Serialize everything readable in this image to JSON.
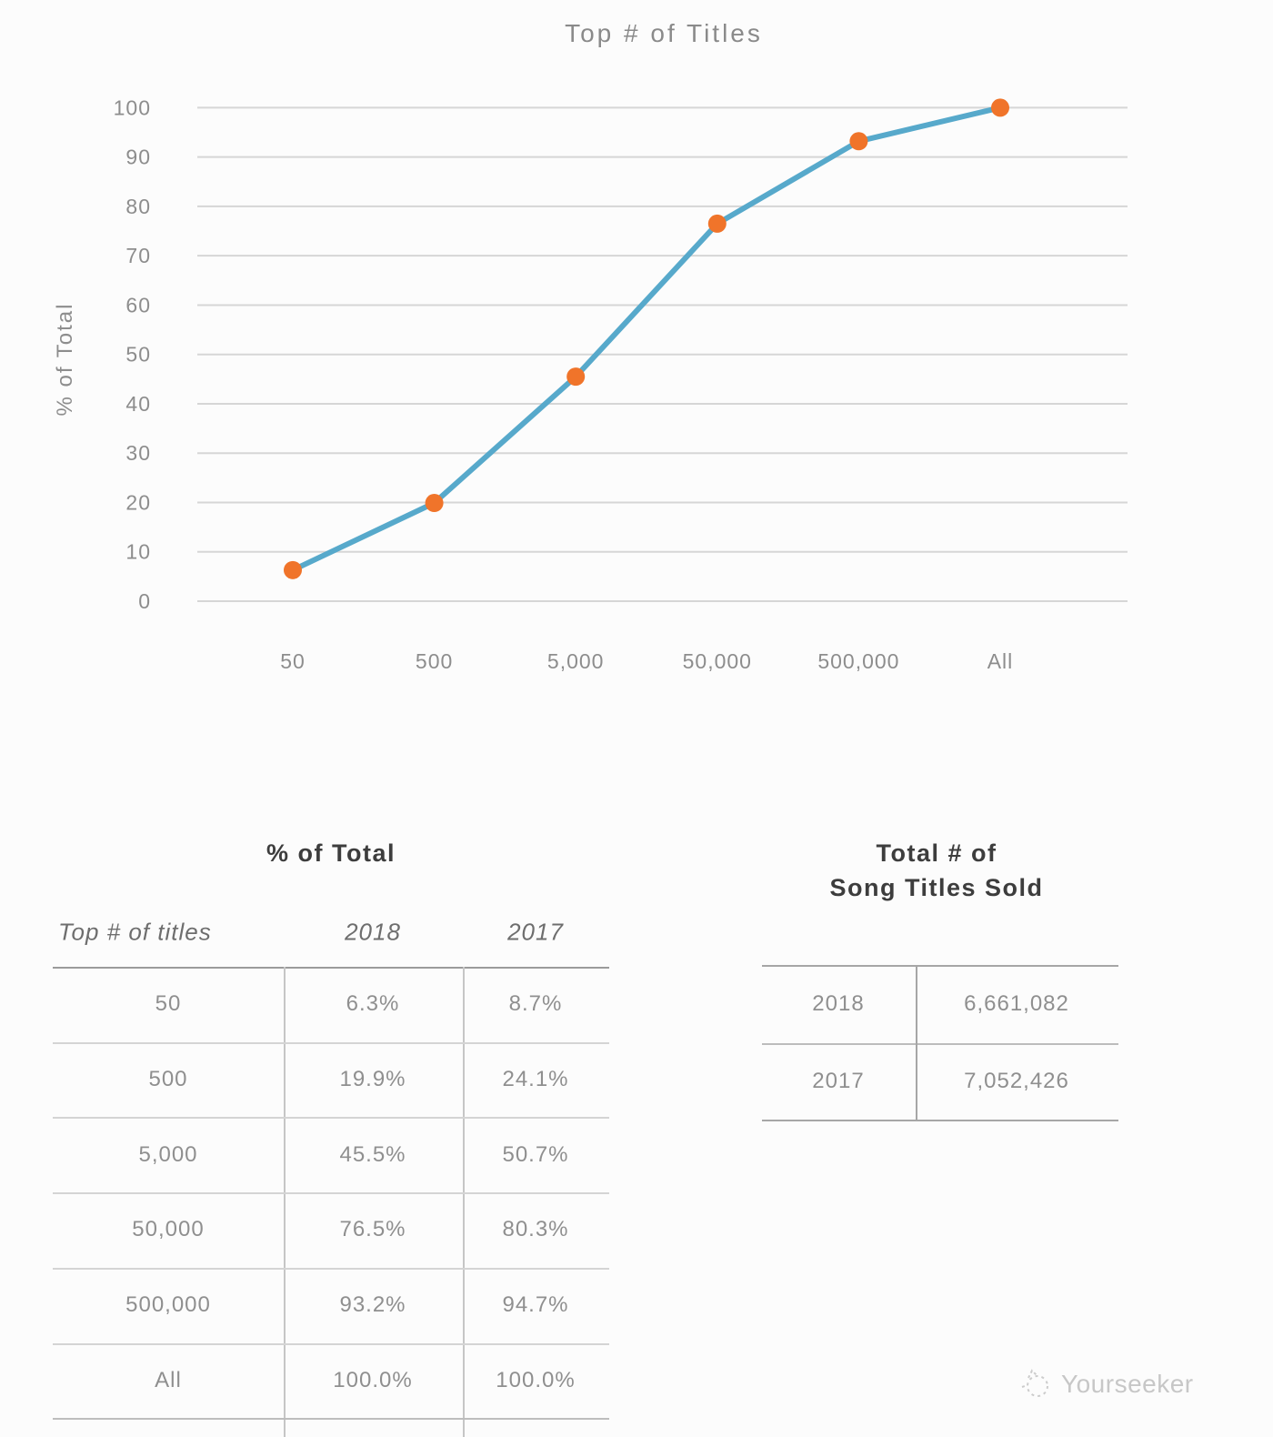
{
  "page": {
    "background": "#fcfcfc"
  },
  "chart_data": {
    "type": "line",
    "title": "Top # of Titles",
    "xlabel": "",
    "ylabel": "% of Total",
    "categories": [
      "50",
      "500",
      "5,000",
      "50,000",
      "500,000",
      "All"
    ],
    "series": [
      {
        "name": "2018",
        "values": [
          6.3,
          19.9,
          45.5,
          76.5,
          93.2,
          100.0
        ]
      }
    ],
    "ylim": [
      0,
      100
    ],
    "yticks": [
      0,
      10,
      20,
      30,
      40,
      50,
      60,
      70,
      80,
      90,
      100
    ],
    "grid": true,
    "legend": "none",
    "line_color": "#57a9cb",
    "marker_color": "#f0742a"
  },
  "tables": {
    "pct_of_total": {
      "title": "% of Total",
      "columns": [
        "Top # of titles",
        "2018",
        "2017"
      ],
      "rows": [
        [
          "50",
          "6.3%",
          "8.7%"
        ],
        [
          "500",
          "19.9%",
          "24.1%"
        ],
        [
          "5,000",
          "45.5%",
          "50.7%"
        ],
        [
          "50,000",
          "76.5%",
          "80.3%"
        ],
        [
          "500,000",
          "93.2%",
          "94.7%"
        ],
        [
          "All",
          "100.0%",
          "100.0%"
        ]
      ]
    },
    "titles_sold": {
      "title_line1": "Total # of",
      "title_line2": "Song Titles Sold",
      "rows": [
        [
          "2018",
          "6,661,082"
        ],
        [
          "2017",
          "7,052,426"
        ]
      ]
    }
  },
  "watermark": {
    "brand": "Yourseeker"
  }
}
